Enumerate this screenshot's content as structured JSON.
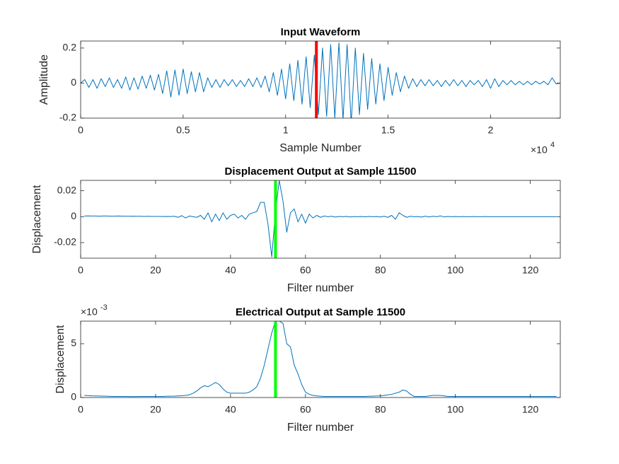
{
  "chart_data": [
    {
      "type": "line",
      "title": "Input Waveform",
      "xlabel": "Sample Number",
      "ylabel": "Amplitude",
      "x_exponent": {
        "base": "×10",
        "power": "4"
      },
      "xlim": [
        0,
        23400
      ],
      "ylim": [
        -0.2,
        0.24
      ],
      "xticks": [
        0,
        {
          "value": 5000,
          "label": "0.5"
        },
        {
          "value": 10000,
          "label": "1"
        },
        {
          "value": 15000,
          "label": "1.5"
        },
        {
          "value": 20000,
          "label": "2"
        }
      ],
      "yticks": [
        -0.2,
        0,
        0.2
      ],
      "color": "#0072bd",
      "marker_x": 11500,
      "marker_color": "#ff0000",
      "x": [
        0,
        200,
        400,
        600,
        800,
        1000,
        1200,
        1400,
        1600,
        1800,
        2000,
        2200,
        2400,
        2600,
        2800,
        3000,
        3200,
        3400,
        3600,
        3800,
        4000,
        4200,
        4400,
        4600,
        4800,
        5000,
        5200,
        5400,
        5600,
        5800,
        6000,
        6200,
        6400,
        6600,
        6800,
        7000,
        7200,
        7400,
        7600,
        7800,
        8000,
        8200,
        8400,
        8600,
        8800,
        9000,
        9200,
        9400,
        9600,
        9800,
        10000,
        10200,
        10400,
        10600,
        10800,
        11000,
        11200,
        11400,
        11600,
        11800,
        12000,
        12200,
        12400,
        12600,
        12800,
        13000,
        13200,
        13400,
        13600,
        13800,
        14000,
        14200,
        14400,
        14600,
        14800,
        15000,
        15200,
        15400,
        15600,
        15800,
        16000,
        16200,
        16400,
        16600,
        16800,
        17000,
        17200,
        17400,
        17600,
        17800,
        18000,
        18200,
        18400,
        18600,
        18800,
        19000,
        19200,
        19400,
        19600,
        19800,
        20000,
        20200,
        20400,
        20600,
        20800,
        21000,
        21200,
        21400,
        21600,
        21800,
        22000,
        22200,
        22400,
        22600,
        22800,
        23000,
        23200,
        23400
      ],
      "values": [
        0,
        0.02,
        -0.025,
        0.02,
        -0.03,
        0.025,
        -0.02,
        0.03,
        -0.025,
        0.02,
        -0.03,
        0.035,
        -0.04,
        0.03,
        -0.035,
        0.04,
        -0.03,
        0.045,
        -0.04,
        0.05,
        -0.06,
        0.07,
        -0.08,
        0.075,
        -0.07,
        0.08,
        -0.06,
        0.065,
        -0.05,
        0.06,
        -0.05,
        0.03,
        -0.025,
        0.02,
        -0.025,
        0.02,
        -0.015,
        0.02,
        -0.02,
        0.015,
        -0.02,
        0.025,
        -0.02,
        0.03,
        -0.025,
        0.04,
        -0.05,
        0.06,
        -0.07,
        0.08,
        -0.09,
        0.11,
        -0.1,
        0.13,
        -0.12,
        0.15,
        -0.14,
        0.16,
        -0.18,
        0.2,
        -0.19,
        0.22,
        -0.2,
        0.23,
        -0.21,
        0.22,
        -0.23,
        0.2,
        -0.18,
        0.17,
        -0.15,
        0.14,
        -0.12,
        0.11,
        -0.1,
        0.09,
        -0.07,
        0.06,
        -0.05,
        0.04,
        -0.03,
        0.025,
        -0.02,
        0.02,
        -0.015,
        0.02,
        -0.015,
        0.015,
        -0.02,
        0.015,
        -0.015,
        0.02,
        -0.015,
        0.015,
        -0.02,
        0.015,
        -0.01,
        0.015,
        -0.02,
        0.02,
        -0.03,
        0.025,
        -0.02,
        0.015,
        -0.01,
        0.015,
        -0.01,
        0.01,
        -0.01,
        0.01,
        -0.01,
        0.01,
        -0.005,
        0.01,
        -0.01,
        0.03,
        -0.005,
        0
      ]
    },
    {
      "type": "line",
      "title": "Displacement Output at Sample 11500",
      "xlabel": "Filter number",
      "ylabel": "Displacement",
      "xlim": [
        0,
        128
      ],
      "ylim": [
        -0.032,
        0.028
      ],
      "xticks": [
        0,
        20,
        40,
        60,
        80,
        100,
        120
      ],
      "yticks": [
        -0.02,
        0,
        0.02
      ],
      "color": "#0072bd",
      "marker_x": 52,
      "marker_color": "#00ff00",
      "x": [
        1,
        2,
        3,
        4,
        5,
        6,
        7,
        8,
        9,
        10,
        11,
        12,
        13,
        14,
        15,
        16,
        17,
        18,
        19,
        20,
        21,
        22,
        23,
        24,
        25,
        26,
        27,
        28,
        29,
        30,
        31,
        32,
        33,
        34,
        35,
        36,
        37,
        38,
        39,
        40,
        41,
        42,
        43,
        44,
        45,
        46,
        47,
        48,
        49,
        50,
        51,
        52,
        53,
        54,
        55,
        56,
        57,
        58,
        59,
        60,
        61,
        62,
        63,
        64,
        65,
        66,
        67,
        68,
        69,
        70,
        71,
        72,
        73,
        74,
        75,
        76,
        77,
        78,
        79,
        80,
        81,
        82,
        83,
        84,
        85,
        86,
        87,
        88,
        89,
        90,
        91,
        92,
        93,
        94,
        95,
        96,
        97,
        98,
        99,
        100,
        101,
        102,
        103,
        104,
        105,
        106,
        107,
        108,
        109,
        110,
        111,
        112,
        113,
        114,
        115,
        116,
        117,
        118,
        119,
        120,
        121,
        122,
        123,
        124,
        125,
        126,
        127
      ],
      "values": [
        0.0005,
        0.0006,
        0.0005,
        0.0005,
        0.0004,
        0.0005,
        0.0005,
        0.0004,
        0.0004,
        0.0005,
        0.0004,
        0.0004,
        0.0003,
        0.0004,
        0.0003,
        0.0003,
        0.0002,
        0.0003,
        0.0002,
        0.0002,
        0.0002,
        0.0001,
        0.0002,
        0.0001,
        0.0003,
        -0.0005,
        0.0008,
        -0.001,
        0.0005,
        0,
        -0.0005,
        0.001,
        -0.002,
        0.003,
        -0.004,
        0.002,
        -0.003,
        0.003,
        -0.002,
        0.001,
        0.002,
        -0.001,
        0.001,
        -0.002,
        0.002,
        0.003,
        0.004,
        0.011,
        0.011,
        -0.006,
        -0.031,
        0.004,
        0.028,
        0.012,
        -0.012,
        0.003,
        0.006,
        -0.004,
        0.002,
        -0.005,
        0.002,
        -0.001,
        0.001,
        -0.0005,
        0.0005,
        0,
        0.0003,
        -0.0003,
        0.0002,
        0,
        0.0002,
        -0.0002,
        0.0001,
        0,
        0.0001,
        -0.0001,
        0.0002,
        0,
        0.0001,
        -0.0002,
        0.0003,
        -0.0005,
        0.001,
        -0.002,
        0.003,
        0.001,
        -0.0005,
        0.0003,
        0,
        0.0001,
        -0.0003,
        0.0004,
        -0.0002,
        0.0003,
        0,
        0.0006,
        -0.0002,
        0.0002,
        0,
        0.0001,
        0,
        0.0001,
        0,
        0,
        0.0001,
        0,
        0,
        0.0001,
        0,
        0,
        0,
        0,
        0,
        0,
        0,
        0,
        0,
        0,
        0,
        0,
        0,
        0,
        0,
        0,
        0,
        0,
        0
      ]
    },
    {
      "type": "line",
      "title": "Electrical Output at Sample 11500",
      "xlabel": "Filter number",
      "ylabel": "Displacement",
      "y_exponent": {
        "base": "×10",
        "power": "-3"
      },
      "xlim": [
        0,
        128
      ],
      "ylim": [
        0,
        0.0071
      ],
      "xticks": [
        0,
        20,
        40,
        60,
        80,
        100,
        120
      ],
      "yticks": [
        0,
        {
          "value": 0.005,
          "label": "5"
        }
      ],
      "color": "#0072bd",
      "marker_x": 52,
      "marker_color": "#00ff00",
      "x": [
        1,
        2,
        3,
        4,
        5,
        6,
        7,
        8,
        9,
        10,
        11,
        12,
        13,
        14,
        15,
        16,
        17,
        18,
        19,
        20,
        21,
        22,
        23,
        24,
        25,
        26,
        27,
        28,
        29,
        30,
        31,
        32,
        33,
        34,
        35,
        36,
        37,
        38,
        39,
        40,
        41,
        42,
        43,
        44,
        45,
        46,
        47,
        48,
        49,
        50,
        51,
        52,
        53,
        54,
        55,
        56,
        57,
        58,
        59,
        60,
        61,
        62,
        63,
        64,
        65,
        66,
        67,
        68,
        69,
        70,
        71,
        72,
        73,
        74,
        75,
        76,
        77,
        78,
        79,
        80,
        81,
        82,
        83,
        84,
        85,
        86,
        87,
        88,
        89,
        90,
        91,
        92,
        93,
        94,
        95,
        96,
        97,
        98,
        99,
        100,
        101,
        102,
        103,
        104,
        105,
        106,
        107,
        108,
        109,
        110,
        111,
        112,
        113,
        114,
        115,
        116,
        117,
        118,
        119,
        120,
        121,
        122,
        123,
        124,
        125,
        126,
        127
      ],
      "values": [
        0.0002,
        0.00018,
        0.00016,
        0.00015,
        0.00014,
        0.00013,
        0.00012,
        0.00011,
        0.0001,
        0.0001,
        0.0001,
        0.0001,
        9e-05,
        9e-05,
        9e-05,
        0.0001,
        0.0001,
        0.0001,
        0.0001,
        0.0001,
        0.0001,
        0.0001,
        0.00012,
        0.00012,
        0.00013,
        0.00015,
        0.00017,
        0.0002,
        0.00025,
        0.0004,
        0.0006,
        0.0009,
        0.0011,
        0.001,
        0.0012,
        0.0014,
        0.0012,
        0.0008,
        0.0005,
        0.0004,
        0.0004,
        0.0004,
        0.0004,
        0.0004,
        0.0005,
        0.0007,
        0.001,
        0.0018,
        0.003,
        0.0045,
        0.006,
        0.0071,
        0.0071,
        0.0069,
        0.005,
        0.0047,
        0.003,
        0.0022,
        0.0012,
        0.0005,
        0.0003,
        0.0002,
        0.00015,
        0.00012,
        0.0001,
        0.0001,
        0.0001,
        0.0001,
        0.0001,
        0.0001,
        0.0001,
        0.0001,
        0.0001,
        0.0001,
        0.0001,
        0.0001,
        0.00012,
        0.00012,
        0.00015,
        0.00015,
        0.0002,
        0.00025,
        0.0003,
        0.0004,
        0.0005,
        0.0007,
        0.0006,
        0.0003,
        0.0001,
        0.0001,
        0.0001,
        0.0001,
        0.00015,
        0.0002,
        0.0002,
        0.0002,
        0.00015,
        0.0001,
        0.0001,
        0.0001,
        0.0001,
        0.0001,
        0.0001,
        0.0001,
        0.0001,
        0.0001,
        0.0001,
        0.0001,
        0.0001,
        0.0001,
        0.0001,
        0.0001,
        0.0001,
        0.0001,
        0.0001,
        0.0001,
        0.0001,
        0.0001,
        0.0001,
        0.0001,
        0.0001,
        0.0001,
        0.0001,
        0.0001,
        0.0001,
        0.0001,
        0.0001
      ]
    }
  ]
}
